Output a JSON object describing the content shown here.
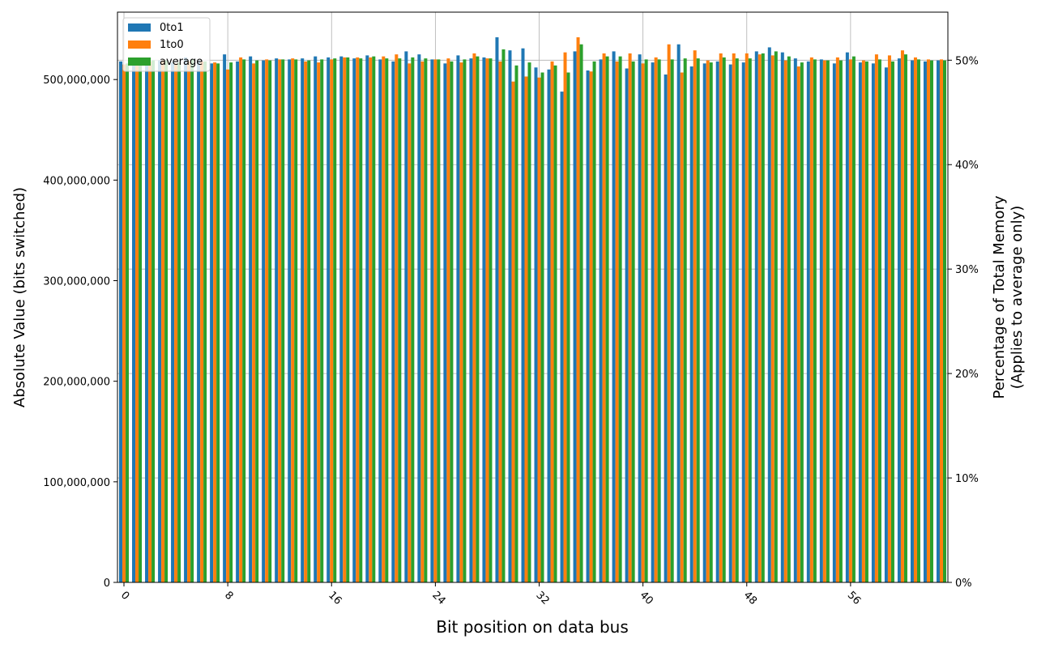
{
  "chart_data": {
    "type": "bar",
    "xlabel": "Bit position on data bus",
    "ylabel": "Absolute Value (bits switched)",
    "ylabel2_line1": "Percentage of Total Memory",
    "ylabel2_line2": "(Applies to average only)",
    "ylim": [
      0,
      567000000
    ],
    "y2lim": [
      0,
      0.546
    ],
    "yticks": [
      0,
      100000000,
      200000000,
      300000000,
      400000000,
      500000000
    ],
    "ytick_labels": [
      "0",
      "100,000,000",
      "200,000,000",
      "300,000,000",
      "400,000,000",
      "500,000,000"
    ],
    "y2ticks": [
      0,
      0.1,
      0.2,
      0.3,
      0.4,
      0.5
    ],
    "y2tick_labels": [
      "0%",
      "10%",
      "20%",
      "30%",
      "40%",
      "50%"
    ],
    "xtick_positions": [
      0,
      8,
      16,
      24,
      32,
      40,
      48,
      56
    ],
    "xtick_labels": [
      "0",
      "8",
      "16",
      "24",
      "32",
      "40",
      "48",
      "56"
    ],
    "grid": true,
    "legend_position": "top-left",
    "colors": {
      "0to1": "#1f77b4",
      "1to0": "#ff7f0e",
      "average": "#2ca02c"
    },
    "series": [
      {
        "name": "0to1",
        "values": [
          518,
          516,
          521,
          519,
          517,
          522,
          519,
          516,
          525,
          518,
          523,
          519,
          521,
          520,
          521,
          523,
          522,
          523,
          521,
          524,
          520,
          518,
          528,
          525,
          520,
          516,
          524,
          521,
          522,
          542,
          529,
          531,
          512,
          510,
          488,
          528,
          509,
          520,
          528,
          511,
          525,
          517,
          505,
          535,
          513,
          516,
          518,
          515,
          517,
          528,
          532,
          527,
          521,
          518,
          520,
          516,
          527,
          517,
          516,
          512,
          521,
          519,
          518,
          519
        ]
      },
      {
        "name": "1to0",
        "values": [
          515,
          514,
          518,
          519,
          516,
          518,
          518,
          517,
          510,
          522,
          516,
          520,
          520,
          521,
          518,
          517,
          520,
          522,
          522,
          522,
          523,
          525,
          516,
          518,
          520,
          521,
          517,
          526,
          521,
          518,
          498,
          503,
          502,
          518,
          527,
          542,
          508,
          526,
          518,
          526,
          516,
          522,
          535,
          507,
          529,
          519,
          526,
          526,
          526,
          525,
          524,
          519,
          513,
          522,
          519,
          522,
          520,
          519,
          525,
          524,
          529,
          522,
          520,
          520
        ]
      },
      {
        "name": "average",
        "values": [
          516,
          515,
          519,
          519,
          517,
          520,
          518,
          516,
          517,
          520,
          519,
          519,
          520,
          520,
          519,
          520,
          521,
          522,
          521,
          523,
          521,
          521,
          522,
          521,
          520,
          518,
          520,
          523,
          521,
          530,
          514,
          517,
          507,
          514,
          507,
          535,
          518,
          523,
          523,
          518,
          520,
          520,
          520,
          521,
          521,
          517,
          522,
          521,
          521,
          526,
          528,
          523,
          517,
          520,
          519,
          519,
          523,
          518,
          520,
          518,
          525,
          520,
          519,
          519
        ]
      }
    ]
  }
}
